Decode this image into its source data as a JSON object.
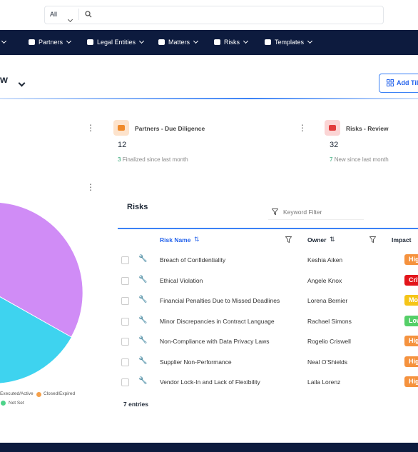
{
  "search": {
    "scope": "All"
  },
  "nav": [
    "s",
    "Partners",
    "Legal Entities",
    "Matters",
    "Risks",
    "Templates"
  ],
  "page": {
    "title": "w",
    "add_button": "Add Til"
  },
  "cards": [
    {
      "title": "Partners - Due Diligence",
      "count": "12",
      "delta": "3",
      "note": "Finalized since last month"
    },
    {
      "title": "Risks - Review",
      "count": "32",
      "delta": "7",
      "note": "New since last month"
    }
  ],
  "pie_legend": [
    "Executed/Active",
    "Closed/Expired",
    "Not Set"
  ],
  "table": {
    "title": "Risks",
    "filter_placeholder": "Keyword Filter",
    "headers": [
      "Risk Name",
      "Owner",
      "Impact"
    ],
    "rows": [
      [
        "Breach of Confidentiality",
        "Keshia Aiken",
        "Hig"
      ],
      [
        "Ethical Violation",
        "Angele Knox",
        "Critic"
      ],
      [
        "Financial Penalties Due to Missed Deadlines",
        "Lorena Bernier",
        "Moder"
      ],
      [
        "Minor Discrepancies in Contract Language",
        "Rachael Simons",
        "Low"
      ],
      [
        "Non-Compliance with Data Privacy Laws",
        "Rogelio Criswell",
        "Hig"
      ],
      [
        "Supplier Non-Performance",
        "Neal O'Shields",
        "Hig"
      ],
      [
        "Vendor Lock-In and Lack of Flexibility",
        "Laila Lorenz",
        "Hig"
      ]
    ],
    "footer": "7 entries"
  }
}
